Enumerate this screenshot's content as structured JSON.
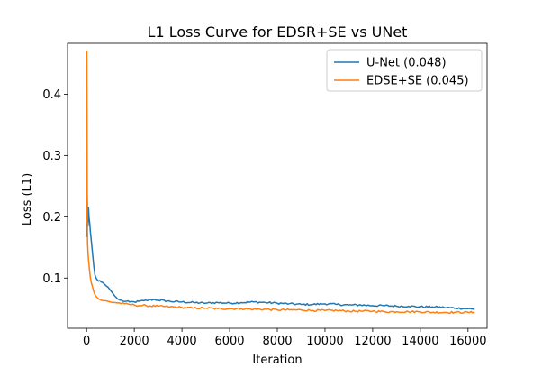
{
  "chart_data": {
    "type": "line",
    "title": "L1 Loss Curve for EDSR+SE vs UNet",
    "xlabel": "Iteration",
    "ylabel": "Loss (L1)",
    "xlim": [
      -800,
      16800
    ],
    "ylim": [
      0.018,
      0.483
    ],
    "xticks": [
      0,
      2000,
      4000,
      6000,
      8000,
      10000,
      12000,
      14000,
      16000
    ],
    "xtick_labels": [
      "0",
      "2000",
      "4000",
      "6000",
      "8000",
      "10000",
      "12000",
      "14000",
      "16000"
    ],
    "yticks": [
      0.1,
      0.2,
      0.3,
      0.4
    ],
    "ytick_labels": [
      "0.1",
      "0.2",
      "0.3",
      "0.4"
    ],
    "grid": false,
    "legend_position": "top-right",
    "series": [
      {
        "name": "U-Net (0.048)",
        "color": "#1f77b4",
        "x": [
          0,
          20,
          40,
          60,
          80,
          100,
          130,
          160,
          200,
          250,
          300,
          350,
          400,
          450,
          500,
          550,
          600,
          700,
          800,
          900,
          1000,
          1100,
          1200,
          1300,
          1400,
          1600,
          1800,
          2000,
          2200,
          2400,
          2600,
          2800,
          3000,
          3500,
          4000,
          4500,
          5000,
          5500,
          6000,
          6500,
          7000,
          7500,
          8000,
          8500,
          9000,
          9500,
          10000,
          10500,
          11000,
          11500,
          12000,
          12500,
          13000,
          13500,
          14000,
          14500,
          15000,
          15500,
          16000,
          16250
        ],
        "y": [
          0.168,
          0.24,
          0.2,
          0.185,
          0.215,
          0.2,
          0.19,
          0.175,
          0.16,
          0.14,
          0.12,
          0.105,
          0.1,
          0.097,
          0.095,
          0.096,
          0.094,
          0.092,
          0.088,
          0.085,
          0.08,
          0.075,
          0.07,
          0.066,
          0.064,
          0.062,
          0.061,
          0.061,
          0.062,
          0.063,
          0.064,
          0.065,
          0.064,
          0.062,
          0.061,
          0.06,
          0.059,
          0.06,
          0.059,
          0.06,
          0.061,
          0.06,
          0.059,
          0.058,
          0.057,
          0.057,
          0.058,
          0.057,
          0.056,
          0.056,
          0.055,
          0.055,
          0.054,
          0.054,
          0.053,
          0.053,
          0.052,
          0.051,
          0.05,
          0.049
        ]
      },
      {
        "name": "EDSE+SE (0.045)",
        "color": "#ff7f0e",
        "x": [
          0,
          10,
          20,
          30,
          40,
          50,
          60,
          80,
          100,
          130,
          160,
          200,
          250,
          300,
          350,
          400,
          500,
          600,
          700,
          800,
          900,
          1000,
          1200,
          1400,
          1600,
          1800,
          2000,
          2200,
          2500,
          3000,
          3500,
          4000,
          4500,
          5000,
          5500,
          6000,
          6500,
          7000,
          7500,
          8000,
          8500,
          9000,
          9500,
          10000,
          10500,
          11000,
          11500,
          12000,
          12500,
          13000,
          13500,
          14000,
          14500,
          15000,
          15500,
          16000,
          16250
        ],
        "y": [
          0.19,
          0.47,
          0.36,
          0.2,
          0.155,
          0.15,
          0.14,
          0.13,
          0.122,
          0.11,
          0.1,
          0.092,
          0.085,
          0.078,
          0.073,
          0.07,
          0.066,
          0.064,
          0.063,
          0.063,
          0.062,
          0.061,
          0.06,
          0.059,
          0.058,
          0.057,
          0.056,
          0.055,
          0.055,
          0.054,
          0.053,
          0.052,
          0.051,
          0.051,
          0.05,
          0.05,
          0.05,
          0.049,
          0.049,
          0.048,
          0.048,
          0.048,
          0.047,
          0.047,
          0.047,
          0.046,
          0.046,
          0.046,
          0.045,
          0.045,
          0.045,
          0.045,
          0.044,
          0.044,
          0.044,
          0.044,
          0.044
        ]
      }
    ]
  }
}
